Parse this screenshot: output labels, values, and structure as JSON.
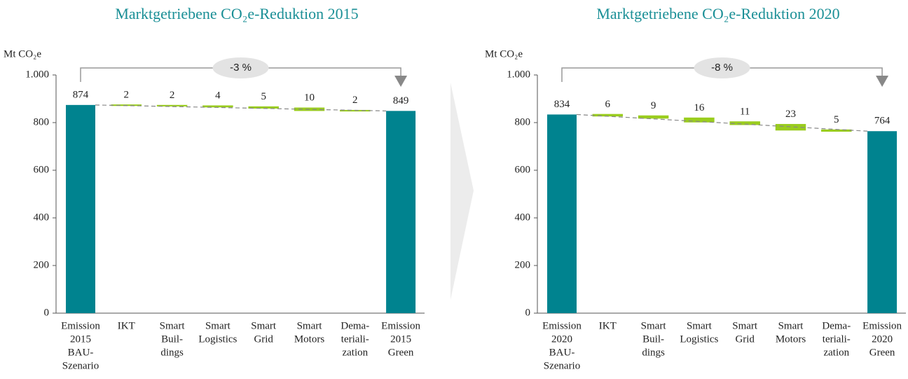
{
  "chart_data": [
    {
      "type": "waterfall",
      "title": "Marktgetriebene CO₂e-Reduktion 2015",
      "ylabel": "Mt CO₂e",
      "annotation": "-3 %",
      "categories": [
        [
          "Emission",
          "2015",
          "BAU-",
          "Szenario"
        ],
        [
          "IKT"
        ],
        [
          "Smart",
          "Buil-",
          "dings"
        ],
        [
          "Smart",
          "Logistics"
        ],
        [
          "Smart",
          "Grid"
        ],
        [
          "Smart",
          "Motors"
        ],
        [
          "Dema-",
          "teriali-",
          "zation"
        ],
        [
          "Emission",
          "2015",
          "Green"
        ]
      ],
      "values": [
        874,
        2,
        2,
        4,
        5,
        10,
        2,
        849
      ],
      "total_color": "#00838f",
      "step_color": "#9acd1e",
      "ylim": [
        0,
        1000
      ],
      "yticks": [
        0,
        200,
        400,
        600,
        800,
        {
          "value": 1000,
          "label": "1.000"
        }
      ]
    },
    {
      "type": "waterfall",
      "title": "Marktgetriebene CO₂e-Reduktion 2020",
      "ylabel": "Mt CO₂e",
      "annotation": "-8 %",
      "categories": [
        [
          "Emission",
          "2020",
          "BAU-",
          "Szenario"
        ],
        [
          "IKT"
        ],
        [
          "Smart",
          "Buil-",
          "dings"
        ],
        [
          "Smart",
          "Logistics"
        ],
        [
          "Smart",
          "Grid"
        ],
        [
          "Smart",
          "Motors"
        ],
        [
          "Dema-",
          "teriali-",
          "zation"
        ],
        [
          "Emission",
          "2020",
          "Green"
        ]
      ],
      "values": [
        834,
        6,
        9,
        16,
        11,
        23,
        5,
        764
      ],
      "total_color": "#00838f",
      "step_color": "#9acd1e",
      "ylim": [
        0,
        1000
      ],
      "yticks": [
        0,
        200,
        400,
        600,
        800,
        {
          "value": 1000,
          "label": "1.000"
        }
      ]
    }
  ]
}
